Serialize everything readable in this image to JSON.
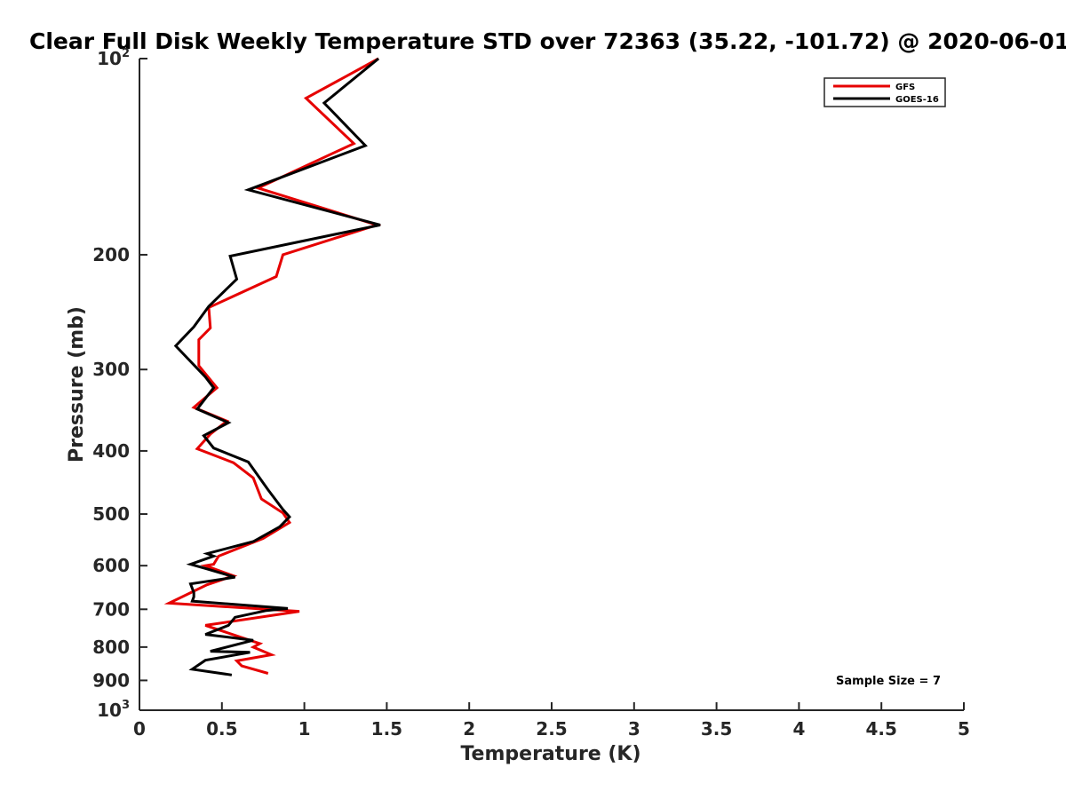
{
  "chart_data": {
    "type": "line",
    "title": "Clear Full Disk Weekly Temperature STD over 72363 (35.22, -101.72) @ 2020-06-01",
    "xlabel": "Temperature (K)",
    "ylabel": "Pressure (mb)",
    "xlim": [
      0,
      5
    ],
    "ylim": [
      100,
      1000
    ],
    "y_scale": "log",
    "y_reversed": true,
    "x_ticks": [
      0,
      0.5,
      1,
      1.5,
      2,
      2.5,
      3,
      3.5,
      4,
      4.5,
      5
    ],
    "x_tick_labels": [
      "0",
      "0.5",
      "1",
      "1.5",
      "2",
      "2.5",
      "3",
      "3.5",
      "4",
      "4.5",
      "5"
    ],
    "y_ticks": [
      100,
      200,
      300,
      400,
      500,
      600,
      700,
      800,
      900,
      1000
    ],
    "y_tick_labels": [
      "10|2",
      "200",
      "300",
      "400",
      "500",
      "600",
      "700",
      "800",
      "900",
      "10|3"
    ],
    "legend": {
      "placement": "top-right",
      "entries": [
        "GFS",
        "GOES-16"
      ]
    },
    "annotation": "Sample Size = 7",
    "series": [
      {
        "name": "GFS",
        "color": "#e60000",
        "points": [
          [
            1.45,
            100
          ],
          [
            1.01,
            115
          ],
          [
            1.3,
            135
          ],
          [
            0.72,
            158
          ],
          [
            1.44,
            180
          ],
          [
            0.87,
            200
          ],
          [
            0.83,
            216
          ],
          [
            0.42,
            241
          ],
          [
            0.43,
            259
          ],
          [
            0.36,
            270
          ],
          [
            0.36,
            296
          ],
          [
            0.47,
            320
          ],
          [
            0.33,
            343
          ],
          [
            0.53,
            360
          ],
          [
            0.43,
            377
          ],
          [
            0.35,
            397
          ],
          [
            0.57,
            417
          ],
          [
            0.69,
            440
          ],
          [
            0.74,
            474
          ],
          [
            0.87,
            498
          ],
          [
            0.91,
            515
          ],
          [
            0.75,
            545
          ],
          [
            0.48,
            580
          ],
          [
            0.45,
            597
          ],
          [
            0.4,
            600
          ],
          [
            0.57,
            622
          ],
          [
            0.41,
            642
          ],
          [
            0.18,
            685
          ],
          [
            0.97,
            705
          ],
          [
            0.4,
            741
          ],
          [
            0.73,
            790
          ],
          [
            0.69,
            800
          ],
          [
            0.8,
            822
          ],
          [
            0.59,
            840
          ],
          [
            0.62,
            855
          ],
          [
            0.78,
            878
          ]
        ]
      },
      {
        "name": "GOES-16",
        "color": "#000000",
        "points": [
          [
            1.45,
            100
          ],
          [
            1.12,
            117
          ],
          [
            1.37,
            136
          ],
          [
            0.66,
            159
          ],
          [
            1.46,
            180
          ],
          [
            0.55,
            201
          ],
          [
            0.59,
            218
          ],
          [
            0.42,
            240
          ],
          [
            0.33,
            258
          ],
          [
            0.22,
            276
          ],
          [
            0.4,
            308
          ],
          [
            0.45,
            320
          ],
          [
            0.35,
            345
          ],
          [
            0.54,
            362
          ],
          [
            0.39,
            379
          ],
          [
            0.45,
            396
          ],
          [
            0.66,
            416
          ],
          [
            0.78,
            459
          ],
          [
            0.87,
            492
          ],
          [
            0.91,
            505
          ],
          [
            0.85,
            523
          ],
          [
            0.69,
            551
          ],
          [
            0.41,
            575
          ],
          [
            0.45,
            580
          ],
          [
            0.31,
            597
          ],
          [
            0.4,
            606
          ],
          [
            0.58,
            625
          ],
          [
            0.31,
            640
          ],
          [
            0.33,
            660
          ],
          [
            0.33,
            670
          ],
          [
            0.32,
            680
          ],
          [
            0.9,
            698
          ],
          [
            0.77,
            703
          ],
          [
            0.58,
            720
          ],
          [
            0.54,
            741
          ],
          [
            0.4,
            765
          ],
          [
            0.69,
            781
          ],
          [
            0.43,
            812
          ],
          [
            0.67,
            815
          ],
          [
            0.4,
            838
          ],
          [
            0.32,
            865
          ],
          [
            0.56,
            883
          ]
        ]
      }
    ]
  }
}
